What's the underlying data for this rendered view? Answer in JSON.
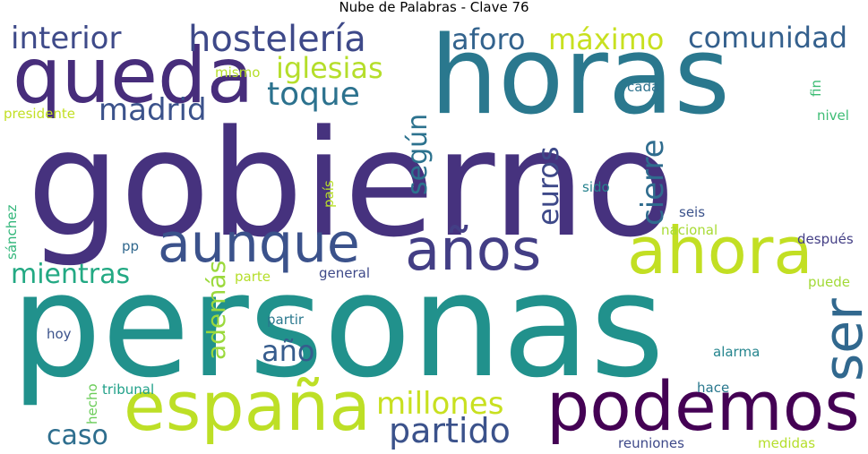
{
  "title": "Nube de Palabras - Clave 76",
  "words": [
    {
      "id": "gobierno",
      "text": "gobierno",
      "color": "#46327e"
    },
    {
      "id": "personas",
      "text": "personas",
      "color": "#21918c"
    },
    {
      "id": "horas",
      "text": "horas",
      "color": "#2a788e"
    },
    {
      "id": "queda",
      "text": "queda",
      "color": "#472d7b"
    },
    {
      "id": "podemos",
      "text": "podemos",
      "color": "#440154"
    },
    {
      "id": "espana",
      "text": "españa",
      "color": "#bddf26"
    },
    {
      "id": "ahora",
      "text": "ahora",
      "color": "#c2df23"
    },
    {
      "id": "aunque",
      "text": "aunque",
      "color": "#3b528b"
    },
    {
      "id": "anos",
      "text": "años",
      "color": "#433e85"
    },
    {
      "id": "ser",
      "text": "ser",
      "color": "#31688e"
    },
    {
      "id": "hosteleria",
      "text": "hostelería",
      "color": "#3e4989"
    },
    {
      "id": "interior",
      "text": "interior",
      "color": "#3e4a89"
    },
    {
      "id": "aforo",
      "text": "aforo",
      "color": "#33638d"
    },
    {
      "id": "maximo",
      "text": "máximo",
      "color": "#c8e020"
    },
    {
      "id": "comunidad",
      "text": "comunidad",
      "color": "#34608d"
    },
    {
      "id": "iglesias",
      "text": "iglesias",
      "color": "#b5de2b"
    },
    {
      "id": "toque",
      "text": "toque",
      "color": "#2c728e"
    },
    {
      "id": "madrid",
      "text": "madrid",
      "color": "#3b528b"
    },
    {
      "id": "segun",
      "text": "según",
      "color": "#2c728e"
    },
    {
      "id": "euros",
      "text": "euros",
      "color": "#3e4989"
    },
    {
      "id": "cierre",
      "text": "cierre",
      "color": "#2f6c8e"
    },
    {
      "id": "mientras",
      "text": "mientras",
      "color": "#23a983"
    },
    {
      "id": "ademas",
      "text": "además",
      "color": "#9bd93c"
    },
    {
      "id": "ano",
      "text": "año",
      "color": "#365c8d"
    },
    {
      "id": "millones",
      "text": "millones",
      "color": "#c8e020"
    },
    {
      "id": "partido",
      "text": "partido",
      "color": "#3b528b"
    },
    {
      "id": "caso",
      "text": "caso",
      "color": "#2e6e8e"
    },
    {
      "id": "presidente",
      "text": "presidente",
      "color": "#c2df23"
    },
    {
      "id": "mismo",
      "text": "mismo",
      "color": "#b5de2b"
    },
    {
      "id": "cada",
      "text": "cada",
      "color": "#2c728e"
    },
    {
      "id": "fin",
      "text": "fin",
      "color": "#3dbc74"
    },
    {
      "id": "nivel",
      "text": "nivel",
      "color": "#3dbc74"
    },
    {
      "id": "sido",
      "text": "sido",
      "color": "#26828e"
    },
    {
      "id": "pais",
      "text": "país",
      "color": "#b8de29"
    },
    {
      "id": "sanchez",
      "text": "sánchez",
      "color": "#32b67a"
    },
    {
      "id": "seis",
      "text": "seis",
      "color": "#3b528b"
    },
    {
      "id": "nacional",
      "text": "nacional",
      "color": "#a8db34"
    },
    {
      "id": "despues",
      "text": "después",
      "color": "#433e85"
    },
    {
      "id": "puede",
      "text": "puede",
      "color": "#a2da37"
    },
    {
      "id": "pp",
      "text": "pp",
      "color": "#31688e"
    },
    {
      "id": "parte",
      "text": "parte",
      "color": "#b5de2b"
    },
    {
      "id": "general",
      "text": "general",
      "color": "#3e4989"
    },
    {
      "id": "partir",
      "text": "partir",
      "color": "#2a788e"
    },
    {
      "id": "hoy",
      "text": "hoy",
      "color": "#3b528b"
    },
    {
      "id": "alarma",
      "text": "alarma",
      "color": "#25858e"
    },
    {
      "id": "hecho",
      "text": "hecho",
      "color": "#6ccd5a"
    },
    {
      "id": "tribunal",
      "text": "tribunal",
      "color": "#1fa088"
    },
    {
      "id": "hace",
      "text": "hace",
      "color": "#2a788e"
    },
    {
      "id": "reuniones",
      "text": "reuniones",
      "color": "#3e4989"
    },
    {
      "id": "medidas",
      "text": "medidas",
      "color": "#b5de2b"
    }
  ]
}
